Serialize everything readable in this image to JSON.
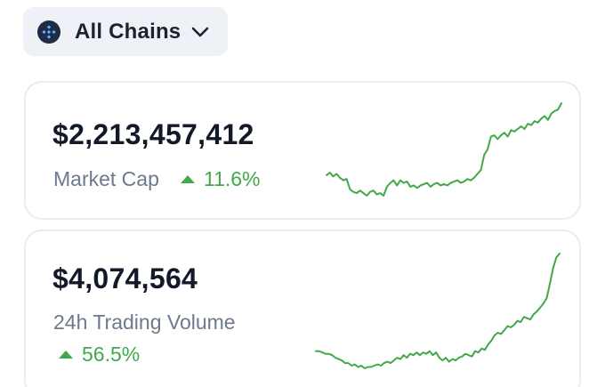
{
  "colors": {
    "positive": "#42a84a",
    "muted_text": "#6b7a8c",
    "chip_bg": "#eef1f5"
  },
  "chain_selector": {
    "label": "All Chains",
    "icon": "chain-network-icon",
    "chevron_icon": "chevron-down-icon"
  },
  "cards": [
    {
      "value": "$2,213,457,412",
      "label": "Market Cap",
      "change": "11.6%",
      "change_direction": "up",
      "sparkline": [
        42,
        44,
        41,
        43,
        40,
        38,
        39,
        31,
        29,
        28,
        30,
        28,
        26,
        29,
        30,
        27,
        28,
        26,
        33,
        36,
        38,
        34,
        38,
        36,
        37,
        33,
        34,
        32,
        34,
        35,
        36,
        33,
        35,
        36,
        34,
        35,
        34,
        36,
        37,
        38,
        36,
        37,
        39,
        38,
        40,
        43,
        46,
        58,
        62,
        72,
        73,
        70,
        73,
        75,
        72,
        77,
        76,
        78,
        80,
        78,
        82,
        81,
        84,
        83,
        86,
        88,
        85,
        90,
        92,
        93,
        98
      ]
    },
    {
      "value": "$4,074,564",
      "label": "24h Trading Volume",
      "change": "56.5%",
      "change_direction": "up",
      "sparkline": [
        22,
        22,
        21,
        20,
        20,
        19,
        17,
        16,
        15,
        13,
        13,
        11,
        12,
        10,
        11,
        9,
        10,
        10,
        11,
        12,
        11,
        13,
        14,
        13,
        15,
        17,
        16,
        19,
        17,
        20,
        19,
        21,
        19,
        21,
        20,
        22,
        19,
        21,
        17,
        15,
        17,
        14,
        16,
        15,
        17,
        18,
        20,
        19,
        18,
        22,
        21,
        24,
        23,
        27,
        30,
        34,
        36,
        35,
        38,
        41,
        40,
        42,
        45,
        44,
        48,
        47,
        46,
        50,
        52,
        55,
        58,
        62,
        73,
        85,
        93,
        96
      ]
    }
  ]
}
